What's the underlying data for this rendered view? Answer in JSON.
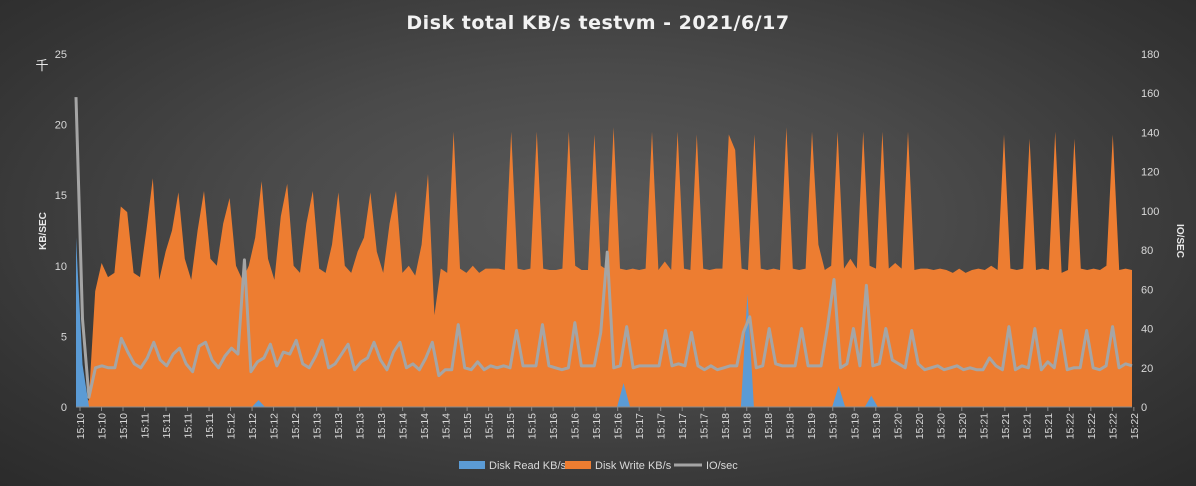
{
  "chart_data": {
    "type": "area",
    "title": "Disk total KB/s testvm - 2021/6/17",
    "ylabel_left": "KB/SEC",
    "ylabel_right": "IO/SEC",
    "left_unit": "千",
    "ylim_left": [
      0,
      25
    ],
    "yticks_left": [
      0,
      5,
      10,
      15,
      20,
      25
    ],
    "ylim_right": [
      0,
      180
    ],
    "yticks_right": [
      0,
      20,
      40,
      60,
      80,
      100,
      120,
      140,
      160,
      180
    ],
    "grid": false,
    "legend_position": "bottom",
    "x_tick_labels": [
      "15:10",
      "15:10",
      "15:10",
      "15:11",
      "15:11",
      "15:11",
      "15:11",
      "15:12",
      "15:12",
      "15:12",
      "15:12",
      "15:13",
      "15:13",
      "15:13",
      "15:13",
      "15:14",
      "15:14",
      "15:14",
      "15:15",
      "15:15",
      "15:15",
      "15:15",
      "15:16",
      "15:16",
      "15:16",
      "15:16",
      "15:17",
      "15:17",
      "15:17",
      "15:17",
      "15:18",
      "15:18",
      "15:18",
      "15:18",
      "15:19",
      "15:19",
      "15:19",
      "15:19",
      "15:20",
      "15:20",
      "15:20",
      "15:20",
      "15:21",
      "15:21",
      "15:21",
      "15:21",
      "15:22",
      "15:22",
      "15:22",
      "15:22"
    ],
    "series": [
      {
        "name": "Disk Write KB/s",
        "axis": "left",
        "kind": "area",
        "color": "#ED7D31",
        "values": [
          0,
          0,
          0.5,
          8.2,
          10.2,
          9.2,
          9.5,
          14.2,
          13.8,
          9.5,
          9.2,
          12.5,
          16.2,
          9,
          11,
          12.5,
          15.2,
          10.5,
          9,
          12.5,
          15.3,
          10.5,
          10,
          13,
          14.8,
          10,
          9,
          10,
          12,
          16,
          10.5,
          9,
          13.5,
          15.8,
          10,
          9.5,
          13,
          15.3,
          9.8,
          9.5,
          11.5,
          15.2,
          10,
          9.5,
          11,
          12,
          15.2,
          11,
          9.5,
          13,
          15.3,
          9.5,
          10,
          9.3,
          11.5,
          16.5,
          6.5,
          9.8,
          9.5,
          19.5,
          9.8,
          9.5,
          10,
          9.5,
          9.8,
          9.8,
          9.8,
          9.7,
          19.5,
          9.8,
          9.7,
          9.8,
          19.5,
          9.8,
          9.7,
          9.7,
          9.8,
          19.5,
          10,
          9.7,
          9.7,
          19.3,
          10,
          9.7,
          19.8,
          9.8,
          9.7,
          9.8,
          9.7,
          9.8,
          19.5,
          9.7,
          10.3,
          9.7,
          19.5,
          9.8,
          9.7,
          19.3,
          9.8,
          9.7,
          9.8,
          9.8,
          19.3,
          18.2,
          9.8,
          9.7,
          19.3,
          9.8,
          9.7,
          9.8,
          9.7,
          19.8,
          9.8,
          9.7,
          9.8,
          19.5,
          11.5,
          9.7,
          10,
          19.5,
          9.8,
          10.5,
          9.8,
          19.5,
          10,
          9.8,
          19.5,
          9.8,
          10.2,
          9.8,
          19.5,
          9.7,
          9.8,
          9.8,
          9.7,
          9.8,
          9.7,
          9.5,
          9.8,
          9.5,
          9.7,
          9.8,
          9.7,
          10,
          9.7,
          19.3,
          9.8,
          9.7,
          9.8,
          19,
          9.7,
          9.8,
          9.7,
          19.5,
          9.5,
          9.7,
          19,
          9.8,
          9.7,
          9.8,
          9.7,
          10,
          19.3,
          9.7,
          9.8,
          9.7
        ]
      },
      {
        "name": "Disk Read KB/s",
        "axis": "left",
        "kind": "area",
        "color": "#5B9BD5",
        "values": [
          12,
          3,
          0,
          0,
          0,
          0,
          0,
          0,
          0,
          0,
          0,
          0,
          0,
          0,
          0,
          0,
          0,
          0,
          0,
          0,
          0,
          0,
          0,
          0,
          0,
          0,
          0,
          0,
          0.5,
          0,
          0,
          0,
          0,
          0,
          0,
          0,
          0,
          0,
          0,
          0,
          0,
          0,
          0,
          0,
          0,
          0,
          0,
          0,
          0,
          0,
          0,
          0,
          0,
          0,
          0,
          0,
          0,
          0,
          0,
          0,
          0,
          0,
          0,
          0,
          0,
          0,
          0,
          0,
          0,
          0,
          0,
          0,
          0,
          0,
          0,
          0,
          0,
          0,
          0,
          0,
          0,
          0,
          0,
          0,
          1.7,
          0,
          0,
          0,
          0,
          0,
          0,
          0,
          0,
          0,
          0,
          0,
          0,
          0,
          0,
          0,
          0,
          0,
          0,
          8,
          0,
          0,
          0,
          0,
          0,
          0,
          0,
          0,
          0,
          0,
          0,
          0,
          0,
          1.5,
          0,
          0,
          0,
          0,
          0.8,
          0,
          0,
          0,
          0,
          0,
          0,
          0,
          0,
          0,
          0,
          0,
          0,
          0,
          0,
          0,
          0,
          0,
          0,
          0,
          0,
          0,
          0,
          0,
          0,
          0,
          0,
          0,
          0,
          0,
          0,
          0,
          0,
          0,
          0,
          0,
          0,
          0,
          0,
          0,
          0
        ]
      },
      {
        "name": "IO/sec",
        "axis": "right",
        "kind": "line",
        "color": "#A5A5A5",
        "values": [
          158,
          45,
          5,
          20,
          21,
          20,
          20,
          35,
          28,
          22,
          20,
          25,
          33,
          24,
          21,
          27,
          30,
          22,
          18,
          31,
          33,
          24,
          20,
          26,
          30,
          27,
          75,
          18,
          23,
          25,
          32,
          21,
          28,
          27,
          34,
          22,
          20,
          26,
          34,
          20,
          22,
          27,
          32,
          19,
          23,
          25,
          33,
          24,
          19,
          28,
          33,
          20,
          22,
          19,
          25,
          33,
          16,
          19,
          19,
          42,
          20,
          19,
          23,
          19,
          21,
          20,
          21,
          20,
          39,
          21,
          21,
          21,
          42,
          21,
          20,
          19,
          20,
          43,
          21,
          21,
          21,
          38,
          79,
          20,
          21,
          41,
          20,
          21,
          21,
          21,
          21,
          39,
          21,
          22,
          21,
          38,
          21,
          19,
          21,
          19,
          20,
          21,
          21,
          38,
          46,
          20,
          21,
          40,
          22,
          21,
          21,
          21,
          40,
          21,
          21,
          21,
          41,
          65,
          20,
          22,
          40,
          21,
          62,
          21,
          22,
          40,
          24,
          22,
          20,
          39,
          22,
          19,
          20,
          21,
          19,
          20,
          21,
          19,
          20,
          19,
          19,
          25,
          21,
          19,
          41,
          19,
          21,
          20,
          40,
          19,
          23,
          20,
          39,
          19,
          20,
          20,
          39,
          20,
          19,
          21,
          41,
          20,
          22,
          21
        ]
      }
    ]
  }
}
